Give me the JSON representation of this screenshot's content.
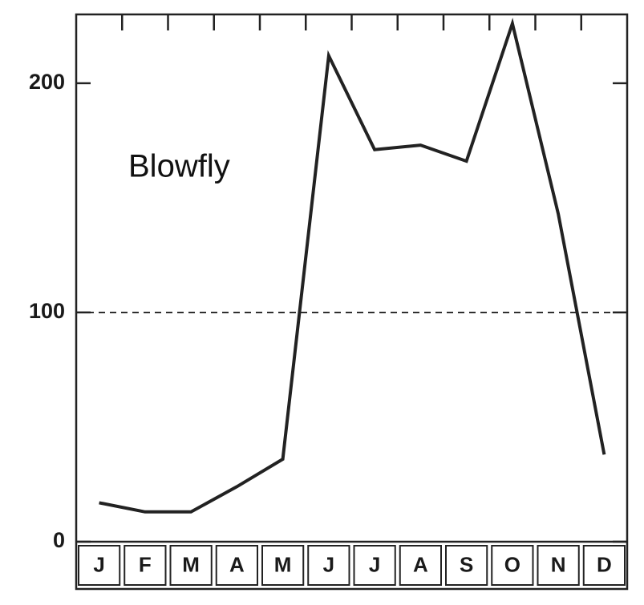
{
  "chart_data": {
    "type": "line",
    "annotation": "Blowfly",
    "categories": [
      "J",
      "F",
      "M",
      "A",
      "M",
      "J",
      "J",
      "A",
      "S",
      "O",
      "N",
      "D"
    ],
    "values": [
      17,
      13,
      13,
      24,
      36,
      212,
      171,
      173,
      166,
      226,
      143,
      38
    ],
    "color": "#222222",
    "ylim": [
      0,
      230
    ],
    "yticks": [
      0,
      100,
      200
    ],
    "dashed_line": 100
  }
}
